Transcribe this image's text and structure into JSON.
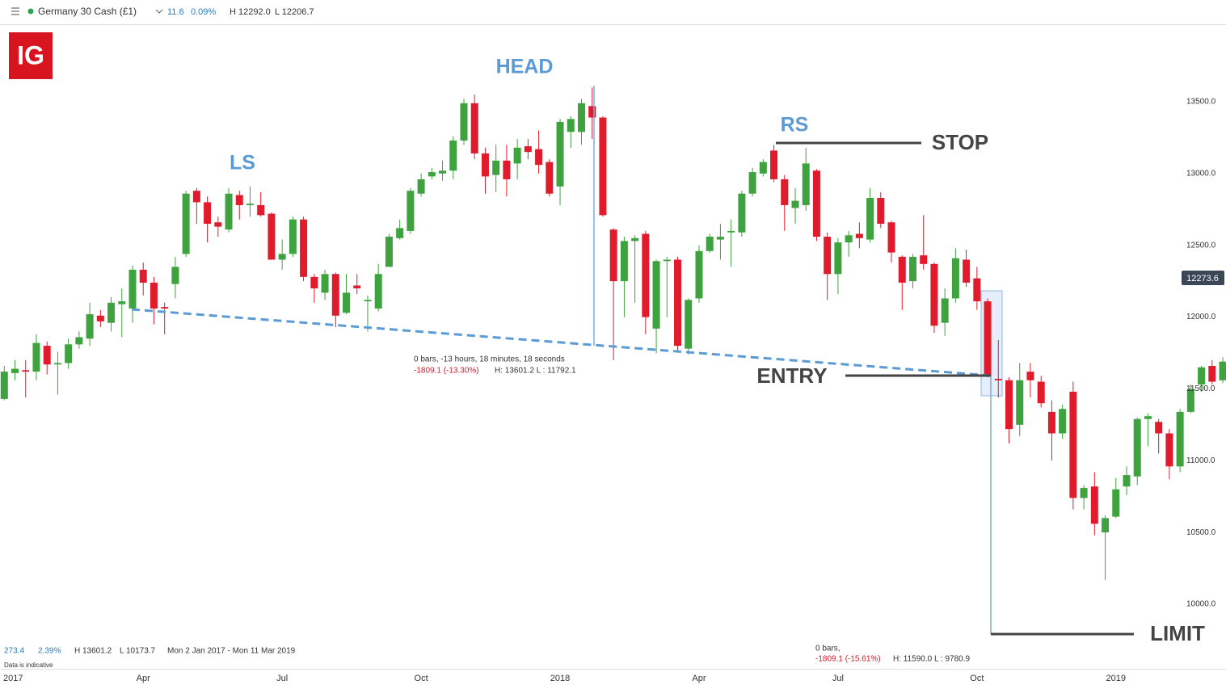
{
  "header": {
    "symbol": "Germany 30 Cash (£1)",
    "change": "11.6",
    "change_pct": "0.09%",
    "high": "H 12292.0",
    "low": "L 12206.7"
  },
  "logo": "IG",
  "footer": {
    "change": "273.4",
    "change_pct": "2.39%",
    "high": "H 13601.2",
    "low": "L 10173.7",
    "range": "Mon 2 Jan 2017 - Mon 11 Mar 2019",
    "note": "Data is indicative"
  },
  "chart_data": {
    "type": "candlestick",
    "up_color": "#3ea23e",
    "down_color": "#df1b2c",
    "x": [
      0,
      1,
      2,
      3,
      4,
      5,
      6,
      7,
      8,
      9,
      10,
      11,
      12,
      13,
      14,
      15,
      16,
      17,
      18,
      19,
      20,
      21,
      22,
      23,
      24,
      25,
      26,
      27,
      28,
      29,
      30,
      31,
      32,
      33,
      34,
      35,
      36,
      37,
      38,
      39,
      40,
      41,
      42,
      43,
      44,
      45,
      46,
      47,
      48,
      49,
      50,
      51,
      52,
      53,
      54,
      55,
      56,
      57,
      58,
      59,
      60,
      61,
      62,
      63,
      64,
      65,
      66,
      67,
      68,
      69,
      70,
      71,
      72,
      73,
      74,
      75,
      76,
      77,
      78,
      79,
      80,
      81,
      82,
      83,
      84,
      85,
      86,
      87,
      88,
      89,
      90,
      91,
      92,
      93,
      94,
      95,
      96,
      97,
      98,
      99,
      100,
      101,
      102,
      103,
      104,
      105,
      106,
      107,
      108,
      109,
      110,
      111,
      112,
      113,
      114
    ],
    "open": [
      11430,
      11610,
      11630,
      11620,
      11800,
      11670,
      11680,
      11810,
      11850,
      12010,
      11960,
      12090,
      12060,
      12330,
      12240,
      12070,
      12230,
      12440,
      12880,
      12800,
      12660,
      12610,
      12850,
      12780,
      12780,
      12720,
      12400,
      12440,
      12680,
      12280,
      12170,
      12300,
      12030,
      12220,
      12110,
      12060,
      12350,
      12550,
      12600,
      12860,
      12980,
      13000,
      13020,
      13230,
      13490,
      13140,
      12990,
      13090,
      13070,
      13190,
      13170,
      13080,
      12910,
      13290,
      13290,
      13470,
      13390,
      12610,
      12250,
      12530,
      12580,
      11920,
      12390,
      12400,
      11780,
      12130,
      12460,
      12540,
      12590,
      12590,
      12860,
      13000,
      13160,
      12960,
      12760,
      12780,
      13020,
      12560,
      12300,
      12520,
      12580,
      12540,
      12830,
      12660,
      12420,
      12250,
      12430,
      12370,
      11960,
      12130,
      12400,
      12270,
      12110,
      11570,
      11560,
      11250,
      11620,
      11550,
      11340,
      11190,
      11480,
      10740,
      10820,
      10500,
      10610,
      10820,
      10890,
      11290,
      11270,
      11190,
      10960,
      11340,
      11530,
      11660,
      11560
    ],
    "high": [
      11660,
      11700,
      11700,
      11880,
      11830,
      11760,
      11850,
      11900,
      12100,
      12050,
      12140,
      12200,
      12360,
      12380,
      12280,
      12100,
      12420,
      12880,
      12900,
      12840,
      12700,
      12900,
      12880,
      12910,
      12870,
      12730,
      12540,
      12700,
      12700,
      12300,
      12330,
      12310,
      12300,
      12300,
      12150,
      12370,
      12580,
      12680,
      12900,
      13000,
      13040,
      13090,
      13260,
      13520,
      13550,
      13180,
      13200,
      13200,
      13240,
      13240,
      13300,
      13100,
      13380,
      13400,
      13520,
      13600,
      13400,
      12620,
      12560,
      12570,
      12600,
      12400,
      12420,
      12420,
      12130,
      12500,
      12580,
      12650,
      12680,
      12880,
      13040,
      13100,
      13200,
      12990,
      12900,
      13180,
      13030,
      12590,
      12550,
      12600,
      12660,
      12900,
      12870,
      12670,
      12430,
      12440,
      12710,
      12380,
      12200,
      12480,
      12470,
      12350,
      12130,
      11840,
      11580,
      11680,
      11680,
      11590,
      11420,
      11390,
      11550,
      10830,
      10920,
      10620,
      10880,
      10960,
      11300,
      11330,
      11290,
      11220,
      11360,
      11530,
      11660,
      11700,
      11720
    ],
    "low": [
      11420,
      11560,
      11440,
      11560,
      11600,
      11460,
      11640,
      11780,
      11800,
      11930,
      11900,
      11860,
      11960,
      12150,
      11950,
      11880,
      12130,
      12420,
      12650,
      12520,
      12560,
      12590,
      12680,
      12700,
      12700,
      12400,
      12330,
      12420,
      12250,
      12100,
      12120,
      11930,
      12020,
      12160,
      11900,
      12040,
      12350,
      12540,
      12580,
      12840,
      12960,
      12950,
      12960,
      13200,
      13100,
      12860,
      12870,
      12840,
      12960,
      13100,
      13000,
      12840,
      12780,
      13180,
      13200,
      13240,
      12700,
      11700,
      12000,
      12100,
      11880,
      11750,
      12000,
      11760,
      11740,
      12100,
      12450,
      12400,
      12350,
      12560,
      12840,
      12980,
      12940,
      12600,
      12650,
      12740,
      12530,
      12120,
      12160,
      12420,
      12480,
      12520,
      12620,
      12380,
      12050,
      12200,
      12330,
      11890,
      11870,
      12100,
      12210,
      12050,
      11580,
      11440,
      11120,
      11170,
      11440,
      11370,
      11000,
      11150,
      10660,
      10660,
      10480,
      10170,
      10600,
      10760,
      10830,
      11100,
      11050,
      10870,
      10920,
      11330,
      11480,
      11530,
      11540
    ],
    "close": [
      11620,
      11640,
      11620,
      11820,
      11670,
      11680,
      11810,
      11860,
      12020,
      11970,
      12100,
      12110,
      12330,
      12240,
      12060,
      12060,
      12350,
      12860,
      12800,
      12650,
      12630,
      12860,
      12780,
      12790,
      12710,
      12400,
      12440,
      12680,
      12280,
      12200,
      12300,
      12010,
      12170,
      12200,
      12120,
      12300,
      12560,
      12620,
      12880,
      12960,
      13010,
      13020,
      13230,
      13490,
      13140,
      12980,
      13090,
      12960,
      13180,
      13150,
      13060,
      12860,
      13360,
      13380,
      13490,
      13390,
      12710,
      12250,
      12530,
      12550,
      12000,
      12390,
      12400,
      11800,
      12120,
      12460,
      12560,
      12560,
      12600,
      12860,
      13010,
      13080,
      12960,
      12780,
      12810,
      13070,
      12560,
      12300,
      12520,
      12570,
      12550,
      12830,
      12650,
      12450,
      12240,
      12420,
      12370,
      11940,
      12130,
      12410,
      12240,
      12110,
      11590,
      11560,
      11220,
      11560,
      11560,
      11400,
      11190,
      11360,
      10740,
      10810,
      10560,
      10600,
      10800,
      10900,
      11290,
      11310,
      11190,
      10960,
      11340,
      11500,
      11650,
      11550,
      11690
    ],
    "xlim": [
      -0.4,
      114.3
    ],
    "xticks": [
      {
        "value": 0,
        "label": "2017"
      },
      {
        "value": 13,
        "label": "Apr"
      },
      {
        "value": 26,
        "label": "Jul"
      },
      {
        "value": 39,
        "label": "Oct"
      },
      {
        "value": 52,
        "label": "2018"
      },
      {
        "value": 65,
        "label": "Apr"
      },
      {
        "value": 78,
        "label": "Jul"
      },
      {
        "value": 91,
        "label": "Oct"
      },
      {
        "value": 104,
        "label": "2019"
      }
    ],
    "ylim": [
      9550,
      14040
    ],
    "yticks": [
      {
        "value": 10000,
        "label": "10000.0"
      },
      {
        "value": 10500,
        "label": "10500.0"
      },
      {
        "value": 11000,
        "label": "11000.0"
      },
      {
        "value": 11500,
        "label": "11500.0"
      },
      {
        "value": 12000,
        "label": "12000.0"
      },
      {
        "value": 12500,
        "label": "12500.0"
      },
      {
        "value": 13000,
        "label": "13000.0"
      },
      {
        "value": 13500,
        "label": "13500.0"
      }
    ],
    "last_price": 12273.6,
    "annotations": [
      "LS",
      "HEAD",
      "RS",
      "STOP",
      "ENTRY",
      "LIMIT"
    ],
    "measurements": [
      {
        "bars": "0 bars, -13 hours, 18 minutes, 18 seconds",
        "change": "-1809.1 (-13.30%)",
        "range": "H: 13601.2 L : 11792.1"
      },
      {
        "bars": "0 bars,",
        "change": "-1809.1 (-15.61%)",
        "range": "H: 11590.0 L : 9780.9"
      }
    ]
  }
}
